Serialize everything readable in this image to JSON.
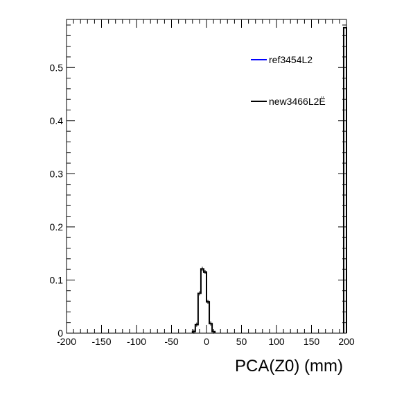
{
  "chart_data": {
    "type": "histogram",
    "xlabel": "PCA(Z0) (mm)",
    "ylabel": "",
    "xlim": [
      -200,
      200
    ],
    "ylim": [
      0,
      0.5905
    ],
    "x_ticks": [
      -200,
      -150,
      -100,
      -50,
      0,
      50,
      100,
      150,
      200
    ],
    "x_tick_labels": [
      "-200",
      "-150",
      "-100",
      "-50",
      "0",
      "50",
      "100",
      "150",
      "200"
    ],
    "y_ticks": [
      0,
      0.1,
      0.2,
      0.3,
      0.4,
      0.5
    ],
    "y_tick_labels": [
      "0",
      "0.1",
      "0.2",
      "0.3",
      "0.4",
      "0.5"
    ],
    "grid": false,
    "legend_position": "top-right",
    "bin_width": 4,
    "series": [
      {
        "name": "ref3454L2",
        "color": "#0000ff",
        "bins": []
      },
      {
        "name": "new3466L2Ë",
        "color": "#000000",
        "bins": [
          {
            "x0": -20,
            "x1": -16,
            "y": 0.003
          },
          {
            "x0": -16,
            "x1": -12,
            "y": 0.016
          },
          {
            "x0": -12,
            "x1": -8,
            "y": 0.075
          },
          {
            "x0": -8,
            "x1": -4,
            "y": 0.121
          },
          {
            "x0": -4,
            "x1": 0,
            "y": 0.115
          },
          {
            "x0": 0,
            "x1": 4,
            "y": 0.059
          },
          {
            "x0": 4,
            "x1": 8,
            "y": 0.018
          },
          {
            "x0": 8,
            "x1": 12,
            "y": 0.003
          },
          {
            "x0": 196,
            "x1": 200,
            "y": 0.575
          }
        ]
      }
    ]
  }
}
